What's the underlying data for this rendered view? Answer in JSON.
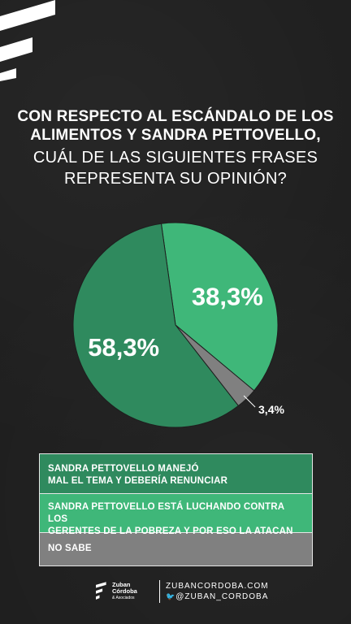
{
  "title": {
    "line1": "CON RESPECTO AL ESCÁNDALO DE LOS",
    "line2": "ALIMENTOS Y SANDRA PETTOVELLO,",
    "line3": "CUÁL DE LAS SIGUIENTES FRASES",
    "line4": "REPRESENTA SU OPINIÓN?"
  },
  "chart_data": {
    "type": "pie",
    "title": "CON RESPECTO AL ESCÁNDALO DE LOS ALIMENTOS Y SANDRA PETTOVELLO, CUÁL DE LAS SIGUIENTES FRASES REPRESENTA SU OPINIÓN?",
    "slices": [
      {
        "label": "SANDRA PETTOVELLO MANEJÓ MAL EL TEMA Y DEBERÍA RENUNCIAR",
        "value": 58.3,
        "display": "58,3%",
        "color": "#2f8a5e"
      },
      {
        "label": "SANDRA PETTOVELLO ESTÁ LUCHANDO CONTRA LOS GERENTES DE LA POBREZA Y POR ESO LA ATACAN",
        "value": 38.3,
        "display": "38,3%",
        "color": "#3fb779"
      },
      {
        "label": "NO SABE",
        "value": 3.4,
        "display": "3,4%",
        "color": "#808080"
      }
    ],
    "legend_position": "bottom"
  },
  "legend": {
    "item1_line1": "SANDRA PETTOVELLO MANEJÓ",
    "item1_line2": "MAL EL TEMA Y DEBERÍA RENUNCIAR",
    "item2_line1": "SANDRA PETTOVELLO ESTÁ LUCHANDO CONTRA LOS",
    "item2_line2": "GERENTES DE LA POBREZA Y POR ESO LA ATACAN",
    "item3_line1": "NO SABE"
  },
  "footer": {
    "brand_line1": "Zuban",
    "brand_line2": "Córdoba",
    "brand_sub": "& Asociados",
    "website": "ZUBANCORDOBA.COM",
    "twitter": "@ZUBAN_CORDOBA",
    "twitter_icon": "twitter-bird-icon"
  },
  "colors": {
    "background": "#1e1e1e",
    "dark_green": "#2f8a5e",
    "light_green": "#3fb779",
    "gray": "#808080"
  }
}
